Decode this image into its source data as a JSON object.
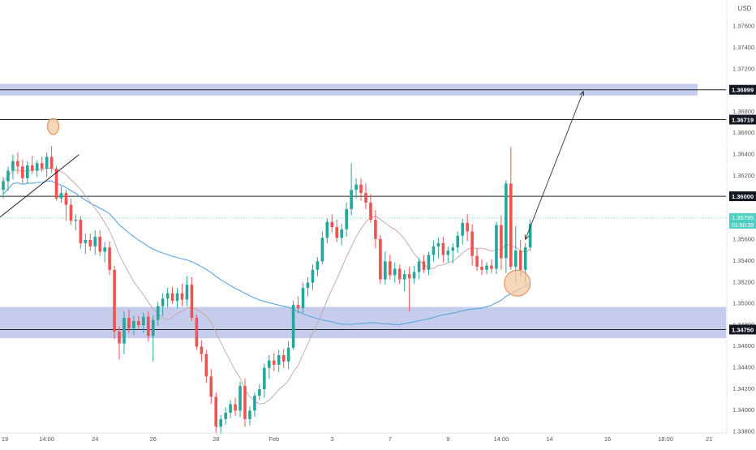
{
  "currency_label": "USD",
  "colors": {
    "up": "#26a69a",
    "down": "#ef5350",
    "zone_fill": "#b3bce6",
    "ma_slow": "#5aa6d8",
    "ma_fast": "#c9a0a6",
    "price_line": "#4dd0c4",
    "circle_fill": "#f6c9a0",
    "circle_stroke": "#d4894a",
    "line_dark": "#222222",
    "axis_text": "#555555"
  },
  "chart_data": {
    "type": "candlestick",
    "ylim": [
      1.3378,
      1.3778
    ],
    "price_ticks": [
      "1.37600",
      "1.37400",
      "1.37200",
      "1.36800",
      "1.36600",
      "1.36400",
      "1.36200",
      "1.35600",
      "1.35400",
      "1.35200",
      "1.35000",
      "1.34600",
      "1.34400",
      "1.34200",
      "1.34000",
      "1.33800"
    ],
    "hidden_tick": "1.34800",
    "x_ticks": [
      {
        "label": "19",
        "i": 0
      },
      {
        "label": "14:00",
        "i": 9
      },
      {
        "label": "24",
        "i": 19
      },
      {
        "label": "26",
        "i": 31
      },
      {
        "label": "28",
        "i": 44
      },
      {
        "label": "Feb",
        "i": 56
      },
      {
        "label": "3",
        "i": 68
      },
      {
        "label": "7",
        "i": 80
      },
      {
        "label": "9",
        "i": 92
      },
      {
        "label": "14:00",
        "i": 103
      },
      {
        "label": "14",
        "i": 113
      },
      {
        "label": "16",
        "i": 125
      },
      {
        "label": "18:00",
        "i": 137
      },
      {
        "label": "21",
        "i": 146
      }
    ],
    "levels": [
      {
        "price": 1.36999,
        "label": "1.36999"
      },
      {
        "price": 1.36719,
        "label": "1.36719"
      },
      {
        "price": 1.36,
        "label": "1.36000"
      },
      {
        "price": 1.3475,
        "label": "1.34750"
      }
    ],
    "current_price": {
      "label": "1.35795",
      "countdown": "01:50:39",
      "price": 1.35795
    },
    "zones": [
      {
        "top": 1.37055,
        "bottom": 1.36945
      },
      {
        "top": 1.34962,
        "bottom": 1.34669
      }
    ],
    "candles": [
      [
        1.3606,
        1.3618,
        1.3598,
        1.3614
      ],
      [
        1.3614,
        1.3628,
        1.3605,
        1.3624
      ],
      [
        1.3624,
        1.3639,
        1.3616,
        1.3633
      ],
      [
        1.3633,
        1.3641,
        1.3621,
        1.3628
      ],
      [
        1.3628,
        1.3634,
        1.3612,
        1.3617
      ],
      [
        1.3617,
        1.3633,
        1.3612,
        1.3629
      ],
      [
        1.3629,
        1.3638,
        1.3621,
        1.3624
      ],
      [
        1.3624,
        1.3634,
        1.3618,
        1.3631
      ],
      [
        1.3631,
        1.3637,
        1.3623,
        1.3626
      ],
      [
        1.3626,
        1.3641,
        1.3618,
        1.3637
      ],
      [
        1.3637,
        1.3647,
        1.3622,
        1.3626
      ],
      [
        1.3626,
        1.3628,
        1.3596,
        1.3598
      ],
      [
        1.3598,
        1.3609,
        1.3594,
        1.3603
      ],
      [
        1.3603,
        1.3606,
        1.3577,
        1.3592
      ],
      [
        1.3592,
        1.3598,
        1.3573,
        1.3577
      ],
      [
        1.3577,
        1.3583,
        1.3568,
        1.3578
      ],
      [
        1.3578,
        1.3581,
        1.3551,
        1.3556
      ],
      [
        1.3556,
        1.3565,
        1.3546,
        1.3559
      ],
      [
        1.3559,
        1.3565,
        1.3549,
        1.3553
      ],
      [
        1.3553,
        1.3568,
        1.3545,
        1.3562
      ],
      [
        1.3562,
        1.3568,
        1.3544,
        1.3548
      ],
      [
        1.3548,
        1.3557,
        1.3538,
        1.3552
      ],
      [
        1.3552,
        1.3558,
        1.3526,
        1.3531
      ],
      [
        1.3531,
        1.3535,
        1.3466,
        1.3473
      ],
      [
        1.3473,
        1.3478,
        1.3447,
        1.3462
      ],
      [
        1.3462,
        1.3492,
        1.3452,
        1.3486
      ],
      [
        1.3486,
        1.3494,
        1.3472,
        1.3476
      ],
      [
        1.3476,
        1.3488,
        1.347,
        1.3483
      ],
      [
        1.3483,
        1.3488,
        1.3475,
        1.3479
      ],
      [
        1.3479,
        1.3491,
        1.3472,
        1.3487
      ],
      [
        1.3487,
        1.3492,
        1.3464,
        1.3469
      ],
      [
        1.3469,
        1.3488,
        1.3445,
        1.3484
      ],
      [
        1.3484,
        1.3501,
        1.3479,
        1.3497
      ],
      [
        1.3497,
        1.3509,
        1.3488,
        1.3504
      ],
      [
        1.3504,
        1.3514,
        1.3496,
        1.3509
      ],
      [
        1.3509,
        1.3515,
        1.3499,
        1.3502
      ],
      [
        1.3502,
        1.3514,
        1.3495,
        1.3509
      ],
      [
        1.3509,
        1.3518,
        1.3497,
        1.3503
      ],
      [
        1.3503,
        1.3525,
        1.3497,
        1.3517
      ],
      [
        1.3517,
        1.3524,
        1.3483,
        1.3486
      ],
      [
        1.3486,
        1.3489,
        1.3456,
        1.3459
      ],
      [
        1.3459,
        1.3465,
        1.3445,
        1.3452
      ],
      [
        1.3452,
        1.3456,
        1.3425,
        1.3431
      ],
      [
        1.3431,
        1.3438,
        1.3405,
        1.3412
      ],
      [
        1.3412,
        1.3416,
        1.3378,
        1.3384
      ],
      [
        1.3384,
        1.3395,
        1.3377,
        1.3391
      ],
      [
        1.3391,
        1.3402,
        1.3386,
        1.3397
      ],
      [
        1.3397,
        1.3409,
        1.3392,
        1.3405
      ],
      [
        1.3405,
        1.3411,
        1.3394,
        1.3399
      ],
      [
        1.3399,
        1.3426,
        1.3393,
        1.3422
      ],
      [
        1.3422,
        1.3429,
        1.3384,
        1.3391
      ],
      [
        1.3391,
        1.3403,
        1.3385,
        1.3399
      ],
      [
        1.3399,
        1.3416,
        1.3393,
        1.3413
      ],
      [
        1.3413,
        1.3424,
        1.3409,
        1.3419
      ],
      [
        1.3419,
        1.3443,
        1.3411,
        1.3439
      ],
      [
        1.3439,
        1.3451,
        1.3429,
        1.3446
      ],
      [
        1.3446,
        1.3453,
        1.3436,
        1.3442
      ],
      [
        1.3442,
        1.3456,
        1.3435,
        1.3451
      ],
      [
        1.3451,
        1.3457,
        1.3439,
        1.3445
      ],
      [
        1.3445,
        1.3464,
        1.3438,
        1.3458
      ],
      [
        1.3458,
        1.3502,
        1.3456,
        1.3498
      ],
      [
        1.3498,
        1.3506,
        1.349,
        1.3495
      ],
      [
        1.3495,
        1.3519,
        1.3491,
        1.3514
      ],
      [
        1.3514,
        1.3524,
        1.3506,
        1.3519
      ],
      [
        1.3519,
        1.3536,
        1.3512,
        1.3531
      ],
      [
        1.3531,
        1.3543,
        1.3525,
        1.3539
      ],
      [
        1.3539,
        1.3567,
        1.3536,
        1.3561
      ],
      [
        1.3561,
        1.3579,
        1.3556,
        1.3576
      ],
      [
        1.3576,
        1.3583,
        1.3566,
        1.3571
      ],
      [
        1.3571,
        1.3578,
        1.3557,
        1.3561
      ],
      [
        1.3561,
        1.3574,
        1.3554,
        1.3569
      ],
      [
        1.3569,
        1.3594,
        1.3562,
        1.3588
      ],
      [
        1.3588,
        1.3631,
        1.3582,
        1.3606
      ],
      [
        1.3606,
        1.3617,
        1.3598,
        1.3611
      ],
      [
        1.3611,
        1.3617,
        1.3596,
        1.3603
      ],
      [
        1.3603,
        1.3612,
        1.3588,
        1.3594
      ],
      [
        1.3594,
        1.3602,
        1.3575,
        1.3578
      ],
      [
        1.3578,
        1.3587,
        1.3551,
        1.356
      ],
      [
        1.356,
        1.3564,
        1.3518,
        1.3522
      ],
      [
        1.3522,
        1.3548,
        1.3517,
        1.3539
      ],
      [
        1.3539,
        1.3545,
        1.3522,
        1.3526
      ],
      [
        1.3526,
        1.3538,
        1.3519,
        1.3532
      ],
      [
        1.3532,
        1.3536,
        1.3518,
        1.3522
      ],
      [
        1.3522,
        1.3531,
        1.3511,
        1.3527
      ],
      [
        1.3527,
        1.3534,
        1.3492,
        1.3523
      ],
      [
        1.3523,
        1.3535,
        1.3518,
        1.3529
      ],
      [
        1.3529,
        1.3542,
        1.3522,
        1.3539
      ],
      [
        1.3539,
        1.3545,
        1.3528,
        1.3531
      ],
      [
        1.3531,
        1.3548,
        1.3526,
        1.3545
      ],
      [
        1.3545,
        1.3558,
        1.3539,
        1.3553
      ],
      [
        1.3553,
        1.3561,
        1.3542,
        1.3556
      ],
      [
        1.3556,
        1.3562,
        1.3538,
        1.3545
      ],
      [
        1.3545,
        1.3553,
        1.3538,
        1.3549
      ],
      [
        1.3549,
        1.3556,
        1.3537,
        1.3552
      ],
      [
        1.3552,
        1.3567,
        1.3547,
        1.3563
      ],
      [
        1.3563,
        1.3579,
        1.3555,
        1.3575
      ],
      [
        1.3575,
        1.3583,
        1.3558,
        1.3567
      ],
      [
        1.3567,
        1.3574,
        1.3535,
        1.3544
      ],
      [
        1.3544,
        1.3551,
        1.353,
        1.3534
      ],
      [
        1.3534,
        1.3541,
        1.3526,
        1.3531
      ],
      [
        1.3531,
        1.3538,
        1.3527,
        1.3535
      ],
      [
        1.3535,
        1.3541,
        1.3528,
        1.3532
      ],
      [
        1.3532,
        1.3576,
        1.3527,
        1.3573
      ],
      [
        1.3573,
        1.3582,
        1.3531,
        1.3542
      ],
      [
        1.3542,
        1.3615,
        1.3528,
        1.3612
      ],
      [
        1.3612,
        1.3646,
        1.3531,
        1.3534
      ],
      [
        1.3534,
        1.3572,
        1.3518,
        1.3549
      ],
      [
        1.3549,
        1.3559,
        1.3525,
        1.3531
      ],
      [
        1.3531,
        1.3556,
        1.3519,
        1.3552
      ],
      [
        1.3552,
        1.3578,
        1.3549,
        1.3574
      ]
    ],
    "annotations": {
      "arrow_from_i": 108,
      "arrow_from_price": 1.35595,
      "arrow_to_i": 120,
      "arrow_to_price": 1.36985,
      "circle_top_i": 10,
      "circle_top_price": 1.36655,
      "circle_bottom_i": 106,
      "circle_bottom_price": 1.35185,
      "trendline": [
        [
          0,
          1.35805
        ],
        [
          15,
          1.3639
        ]
      ]
    }
  }
}
